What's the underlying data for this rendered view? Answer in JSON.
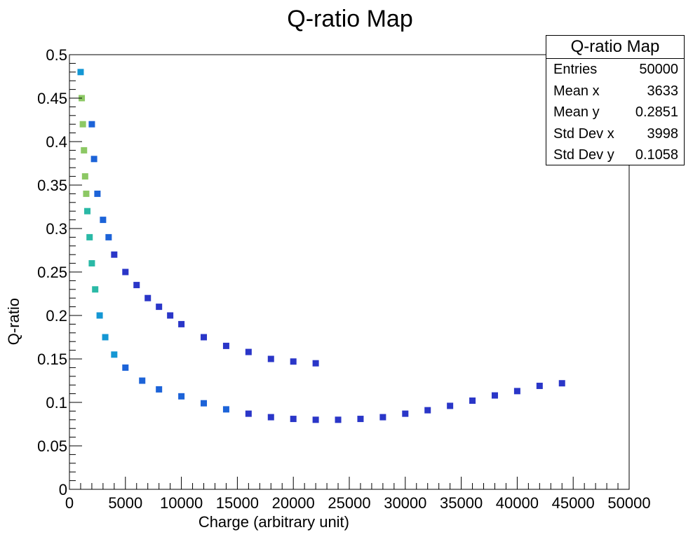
{
  "chart_data": {
    "type": "heatmap",
    "title": "Q-ratio Map",
    "xlabel": "Charge (arbitrary unit)",
    "ylabel": "Q-ratio",
    "xlim": [
      0,
      50000
    ],
    "ylim": [
      0,
      0.5
    ],
    "x_ticks": [
      "0",
      "5000",
      "10000",
      "15000",
      "20000",
      "25000",
      "30000",
      "35000",
      "40000",
      "45000",
      "50000"
    ],
    "y_ticks": [
      "0",
      "0.05",
      "0.1",
      "0.15",
      "0.2",
      "0.25",
      "0.3",
      "0.35",
      "0.4",
      "0.45",
      "0.5"
    ],
    "grid": false,
    "colormap": [
      "#2a36c8",
      "#1c63d8",
      "#1497d4",
      "#2ab9a6",
      "#8cc864",
      "#d6d23a"
    ],
    "series": [
      {
        "points": [
          [
            1000,
            0.48,
            3
          ],
          [
            1100,
            0.45,
            5
          ],
          [
            1200,
            0.42,
            5
          ],
          [
            1300,
            0.39,
            5
          ],
          [
            1400,
            0.36,
            5
          ],
          [
            1500,
            0.34,
            5
          ],
          [
            1600,
            0.32,
            4
          ],
          [
            1800,
            0.29,
            4
          ],
          [
            2000,
            0.26,
            4
          ],
          [
            2300,
            0.23,
            4
          ],
          [
            2700,
            0.2,
            3
          ],
          [
            3200,
            0.175,
            3
          ],
          [
            4000,
            0.155,
            3
          ],
          [
            5000,
            0.14,
            2
          ],
          [
            6500,
            0.125,
            2
          ],
          [
            8000,
            0.115,
            2
          ],
          [
            10000,
            0.107,
            2
          ],
          [
            12000,
            0.099,
            2
          ],
          [
            14000,
            0.092,
            2
          ],
          [
            16000,
            0.087,
            1
          ],
          [
            18000,
            0.083,
            1
          ],
          [
            20000,
            0.081,
            1
          ],
          [
            22000,
            0.08,
            1
          ],
          [
            24000,
            0.08,
            1
          ],
          [
            26000,
            0.081,
            1
          ],
          [
            28000,
            0.083,
            1
          ],
          [
            30000,
            0.087,
            1
          ],
          [
            32000,
            0.091,
            1
          ],
          [
            34000,
            0.096,
            1
          ],
          [
            36000,
            0.102,
            1
          ],
          [
            38000,
            0.108,
            1
          ],
          [
            40000,
            0.113,
            1
          ],
          [
            42000,
            0.119,
            1
          ],
          [
            44000,
            0.122,
            1
          ]
        ]
      },
      {
        "points": [
          [
            2000,
            0.42,
            2
          ],
          [
            2200,
            0.38,
            2
          ],
          [
            2500,
            0.34,
            2
          ],
          [
            3000,
            0.31,
            2
          ],
          [
            3500,
            0.29,
            2
          ],
          [
            4000,
            0.27,
            1
          ],
          [
            5000,
            0.25,
            1
          ],
          [
            6000,
            0.235,
            1
          ],
          [
            7000,
            0.22,
            1
          ],
          [
            8000,
            0.21,
            1
          ],
          [
            9000,
            0.2,
            1
          ],
          [
            10000,
            0.19,
            1
          ],
          [
            12000,
            0.175,
            1
          ],
          [
            14000,
            0.165,
            1
          ],
          [
            16000,
            0.158,
            1
          ],
          [
            18000,
            0.15,
            1
          ],
          [
            20000,
            0.147,
            1
          ],
          [
            22000,
            0.145,
            1
          ]
        ]
      }
    ]
  },
  "stats": {
    "title": "Q-ratio Map",
    "rows": [
      {
        "label": "Entries",
        "value": "50000"
      },
      {
        "label": "Mean x",
        "value": "3633"
      },
      {
        "label": "Mean y",
        "value": "0.2851"
      },
      {
        "label": "Std Dev x",
        "value": "3998"
      },
      {
        "label": "Std Dev y",
        "value": "0.1058"
      }
    ]
  }
}
